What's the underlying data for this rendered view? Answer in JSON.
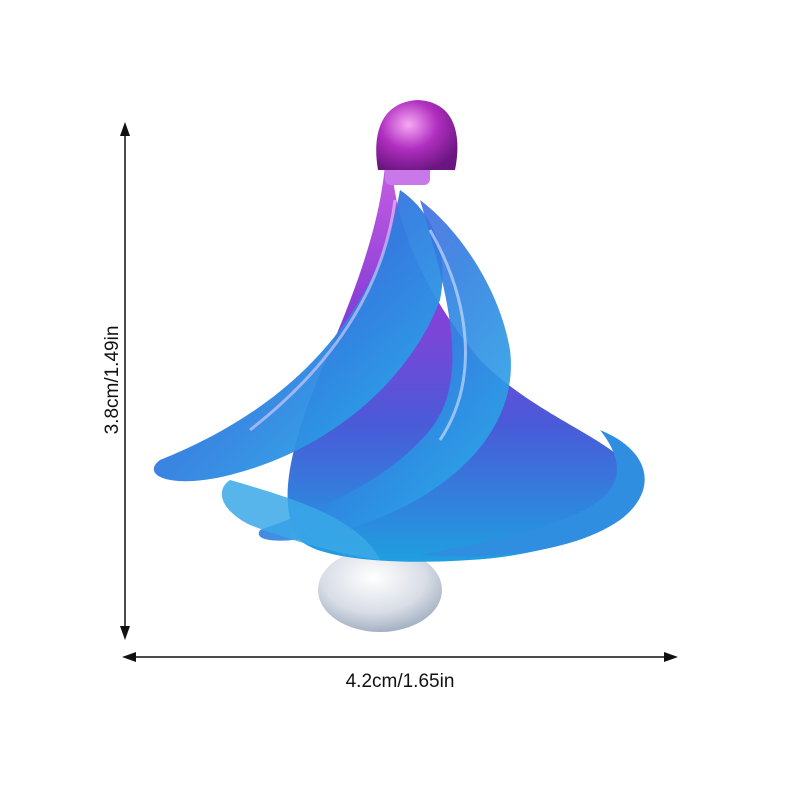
{
  "dimensions": {
    "height_label": "3.8cm/1.49in",
    "width_label": "4.2cm/1.65in"
  },
  "product": {
    "subject": "wind spinner top",
    "colors": {
      "cap": "#b02fc0",
      "upper_body": "#8a3fd8",
      "lower_body": "#2a86d8",
      "ball": "#d8dde6",
      "dimension_line": "#111111"
    }
  }
}
